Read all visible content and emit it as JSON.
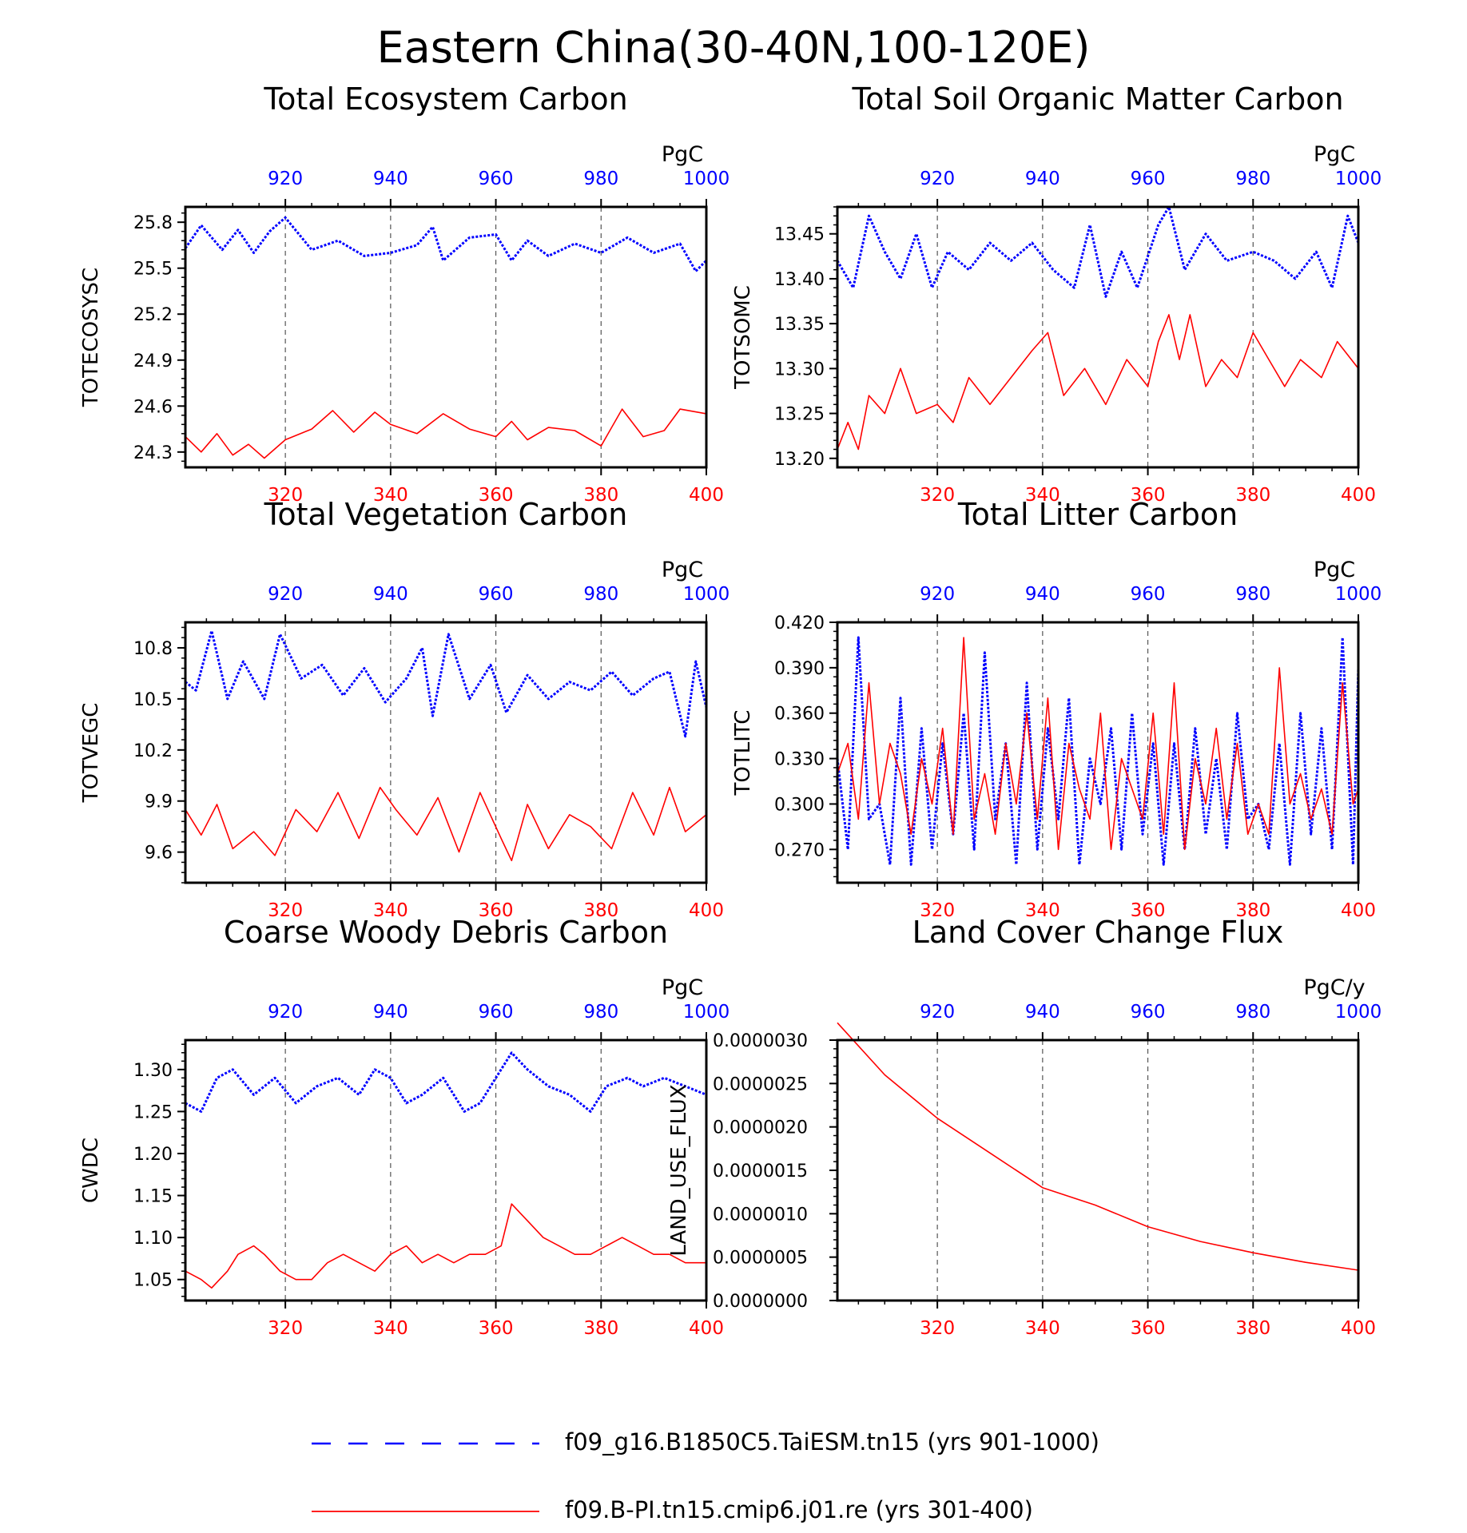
{
  "figure": {
    "title": "Eastern China(30-40N,100-120E)"
  },
  "colors": {
    "series_a": "#0000ff",
    "series_b": "#ff0000",
    "axis": "#000000"
  },
  "legend": [
    {
      "label": "f09_g16.B1850C5.TaiESM.tn15 (yrs 901-1000)",
      "style": "dashed-blue"
    },
    {
      "label": "f09.B-PI.tn15.cmip6.j01.re (yrs 301-400)",
      "style": "solid-red"
    }
  ],
  "chart_data": [
    {
      "type": "line",
      "title": "Total Ecosystem Carbon",
      "ylabel": "TOTECOSYSC",
      "units": "PgC",
      "ylim": [
        24.2,
        25.9
      ],
      "yticks": [
        "24.3",
        "24.6",
        "24.9",
        "25.2",
        "25.5",
        "25.8"
      ],
      "xlim_bottom": [
        301,
        400
      ],
      "xticks_bottom": [
        "320",
        "340",
        "360",
        "380",
        "400"
      ],
      "xlim_top": [
        901,
        1000
      ],
      "xticks_top": [
        "920",
        "940",
        "960",
        "980",
        "1000"
      ],
      "grid": "vertical-dashed",
      "series": [
        {
          "name": "f09_g16.B1850C5.TaiESM.tn15 (yrs 901-1000)",
          "axis": "top",
          "x": [
            901,
            904,
            908,
            911,
            914,
            917,
            920,
            925,
            930,
            935,
            940,
            945,
            948,
            950,
            955,
            960,
            963,
            966,
            970,
            975,
            980,
            985,
            990,
            995,
            998,
            1000
          ],
          "values": [
            25.63,
            25.78,
            25.62,
            25.75,
            25.6,
            25.74,
            25.83,
            25.62,
            25.68,
            25.58,
            25.6,
            25.65,
            25.77,
            25.55,
            25.7,
            25.72,
            25.55,
            25.68,
            25.58,
            25.66,
            25.6,
            25.7,
            25.6,
            25.66,
            25.48,
            25.55
          ]
        },
        {
          "name": "f09.B-PI.tn15.cmip6.j01.re (yrs 301-400)",
          "axis": "bottom",
          "x": [
            301,
            304,
            307,
            310,
            313,
            316,
            320,
            325,
            329,
            333,
            337,
            340,
            345,
            350,
            355,
            360,
            363,
            366,
            370,
            375,
            380,
            384,
            388,
            392,
            395,
            400
          ],
          "values": [
            24.4,
            24.3,
            24.42,
            24.28,
            24.35,
            24.26,
            24.38,
            24.45,
            24.57,
            24.43,
            24.56,
            24.48,
            24.42,
            24.55,
            24.45,
            24.4,
            24.5,
            24.38,
            24.46,
            24.44,
            24.34,
            24.58,
            24.4,
            24.44,
            24.58,
            24.55
          ]
        }
      ]
    },
    {
      "type": "line",
      "title": "Total Soil Organic Matter Carbon",
      "ylabel": "TOTSOMC",
      "units": "PgC",
      "ylim": [
        13.19,
        13.48
      ],
      "yticks": [
        "13.20",
        "13.25",
        "13.30",
        "13.35",
        "13.40",
        "13.45"
      ],
      "xlim_bottom": [
        301,
        400
      ],
      "xticks_bottom": [
        "320",
        "340",
        "360",
        "380",
        "400"
      ],
      "xlim_top": [
        901,
        1000
      ],
      "xticks_top": [
        "920",
        "940",
        "960",
        "980",
        "1000"
      ],
      "grid": "vertical-dashed",
      "series": [
        {
          "name": "f09_g16.B1850C5.TaiESM.tn15 (yrs 901-1000)",
          "axis": "top",
          "x": [
            901,
            904,
            907,
            910,
            913,
            916,
            919,
            922,
            926,
            930,
            934,
            938,
            942,
            946,
            949,
            952,
            955,
            958,
            962,
            964,
            967,
            971,
            975,
            980,
            984,
            988,
            992,
            995,
            998,
            1000
          ],
          "values": [
            13.42,
            13.39,
            13.47,
            13.43,
            13.4,
            13.45,
            13.39,
            13.43,
            13.41,
            13.44,
            13.42,
            13.44,
            13.41,
            13.39,
            13.46,
            13.38,
            13.43,
            13.39,
            13.46,
            13.48,
            13.41,
            13.45,
            13.42,
            13.43,
            13.42,
            13.4,
            13.43,
            13.39,
            13.47,
            13.44
          ]
        },
        {
          "name": "f09.B-PI.tn15.cmip6.j01.re (yrs 301-400)",
          "axis": "bottom",
          "x": [
            301,
            303,
            305,
            307,
            310,
            313,
            316,
            320,
            323,
            326,
            330,
            334,
            338,
            341,
            344,
            348,
            352,
            356,
            360,
            362,
            364,
            366,
            368,
            371,
            374,
            377,
            380,
            383,
            386,
            389,
            393,
            396,
            400
          ],
          "values": [
            13.21,
            13.24,
            13.21,
            13.27,
            13.25,
            13.3,
            13.25,
            13.26,
            13.24,
            13.29,
            13.26,
            13.29,
            13.32,
            13.34,
            13.27,
            13.3,
            13.26,
            13.31,
            13.28,
            13.33,
            13.36,
            13.31,
            13.36,
            13.28,
            13.31,
            13.29,
            13.34,
            13.31,
            13.28,
            13.31,
            13.29,
            13.33,
            13.3
          ]
        }
      ]
    },
    {
      "type": "line",
      "title": "Total Vegetation Carbon",
      "ylabel": "TOTVEGC",
      "units": "PgC",
      "ylim": [
        9.42,
        10.95
      ],
      "yticks": [
        "9.6",
        "9.9",
        "10.2",
        "10.5",
        "10.8"
      ],
      "xlim_bottom": [
        301,
        400
      ],
      "xticks_bottom": [
        "320",
        "340",
        "360",
        "380",
        "400"
      ],
      "xlim_top": [
        901,
        1000
      ],
      "xticks_top": [
        "920",
        "940",
        "960",
        "980",
        "1000"
      ],
      "grid": "vertical-dashed",
      "series": [
        {
          "name": "f09_g16.B1850C5.TaiESM.tn15 (yrs 901-1000)",
          "axis": "top",
          "x": [
            901,
            903,
            906,
            909,
            912,
            916,
            919,
            923,
            927,
            931,
            935,
            939,
            943,
            946,
            948,
            951,
            955,
            959,
            962,
            966,
            970,
            974,
            978,
            982,
            986,
            990,
            993,
            996,
            998,
            1000
          ],
          "values": [
            10.6,
            10.55,
            10.9,
            10.5,
            10.72,
            10.5,
            10.88,
            10.62,
            10.7,
            10.52,
            10.68,
            10.48,
            10.62,
            10.8,
            10.4,
            10.88,
            10.5,
            10.7,
            10.42,
            10.64,
            10.5,
            10.6,
            10.55,
            10.66,
            10.52,
            10.62,
            10.66,
            10.28,
            10.72,
            10.45
          ]
        },
        {
          "name": "f09.B-PI.tn15.cmip6.j01.re (yrs 301-400)",
          "axis": "bottom",
          "x": [
            301,
            304,
            307,
            310,
            314,
            318,
            322,
            326,
            330,
            334,
            338,
            341,
            345,
            349,
            353,
            357,
            361,
            363,
            366,
            370,
            374,
            378,
            382,
            386,
            390,
            393,
            396,
            400
          ],
          "values": [
            9.85,
            9.7,
            9.88,
            9.62,
            9.72,
            9.58,
            9.85,
            9.72,
            9.95,
            9.68,
            9.98,
            9.85,
            9.7,
            9.92,
            9.6,
            9.95,
            9.68,
            9.55,
            9.88,
            9.62,
            9.82,
            9.75,
            9.62,
            9.95,
            9.7,
            9.98,
            9.72,
            9.82
          ]
        }
      ]
    },
    {
      "type": "line",
      "title": "Total Litter Carbon",
      "ylabel": "TOTLITC",
      "units": "PgC",
      "ylim": [
        0.248,
        0.42
      ],
      "yticks": [
        "0.270",
        "0.300",
        "0.330",
        "0.360",
        "0.390",
        "0.420"
      ],
      "xlim_bottom": [
        301,
        400
      ],
      "xticks_bottom": [
        "320",
        "340",
        "360",
        "380",
        "400"
      ],
      "xlim_top": [
        901,
        1000
      ],
      "xticks_top": [
        "920",
        "940",
        "960",
        "980",
        "1000"
      ],
      "grid": "vertical-dashed",
      "series": [
        {
          "name": "f09_g16.B1850C5.TaiESM.tn15 (yrs 901-1000)",
          "axis": "top",
          "x": [
            901,
            903,
            905,
            907,
            909,
            911,
            913,
            915,
            917,
            919,
            921,
            923,
            925,
            927,
            929,
            931,
            933,
            935,
            937,
            939,
            941,
            943,
            945,
            947,
            949,
            951,
            953,
            955,
            957,
            959,
            961,
            963,
            965,
            967,
            969,
            971,
            973,
            975,
            977,
            979,
            981,
            983,
            985,
            987,
            989,
            991,
            993,
            995,
            997,
            999,
            1000
          ],
          "values": [
            0.33,
            0.27,
            0.41,
            0.29,
            0.3,
            0.26,
            0.37,
            0.26,
            0.35,
            0.27,
            0.34,
            0.28,
            0.36,
            0.27,
            0.4,
            0.29,
            0.34,
            0.26,
            0.38,
            0.27,
            0.35,
            0.29,
            0.37,
            0.26,
            0.33,
            0.3,
            0.35,
            0.27,
            0.36,
            0.28,
            0.34,
            0.26,
            0.34,
            0.27,
            0.35,
            0.28,
            0.33,
            0.27,
            0.36,
            0.29,
            0.3,
            0.27,
            0.34,
            0.26,
            0.36,
            0.28,
            0.35,
            0.27,
            0.41,
            0.26,
            0.39
          ]
        },
        {
          "name": "f09.B-PI.tn15.cmip6.j01.re (yrs 301-400)",
          "axis": "bottom",
          "x": [
            301,
            303,
            305,
            307,
            309,
            311,
            313,
            315,
            317,
            319,
            321,
            323,
            325,
            327,
            329,
            331,
            333,
            335,
            337,
            339,
            341,
            343,
            345,
            347,
            349,
            351,
            353,
            355,
            357,
            359,
            361,
            363,
            365,
            367,
            369,
            371,
            373,
            375,
            377,
            379,
            381,
            383,
            385,
            387,
            389,
            391,
            393,
            395,
            397,
            399,
            400
          ],
          "values": [
            0.32,
            0.34,
            0.29,
            0.38,
            0.3,
            0.34,
            0.32,
            0.28,
            0.33,
            0.3,
            0.35,
            0.28,
            0.41,
            0.29,
            0.32,
            0.28,
            0.34,
            0.3,
            0.36,
            0.29,
            0.37,
            0.27,
            0.34,
            0.31,
            0.29,
            0.36,
            0.27,
            0.33,
            0.31,
            0.29,
            0.36,
            0.28,
            0.38,
            0.27,
            0.33,
            0.3,
            0.35,
            0.29,
            0.34,
            0.28,
            0.3,
            0.28,
            0.39,
            0.3,
            0.32,
            0.29,
            0.31,
            0.28,
            0.38,
            0.3,
            0.31
          ]
        }
      ]
    },
    {
      "type": "line",
      "title": "Coarse Woody Debris Carbon",
      "ylabel": "CWDC",
      "units": "PgC",
      "ylim": [
        1.025,
        1.335
      ],
      "yticks": [
        "1.05",
        "1.10",
        "1.15",
        "1.20",
        "1.25",
        "1.30"
      ],
      "xlim_bottom": [
        301,
        400
      ],
      "xticks_bottom": [
        "320",
        "340",
        "360",
        "380",
        "400"
      ],
      "xlim_top": [
        901,
        1000
      ],
      "xticks_top": [
        "920",
        "940",
        "960",
        "980",
        "1000"
      ],
      "grid": "vertical-dashed",
      "series": [
        {
          "name": "f09_g16.B1850C5.TaiESM.tn15 (yrs 901-1000)",
          "axis": "top",
          "x": [
            901,
            904,
            907,
            910,
            914,
            918,
            922,
            926,
            930,
            934,
            937,
            940,
            943,
            946,
            950,
            954,
            957,
            960,
            963,
            966,
            970,
            974,
            978,
            981,
            985,
            988,
            992,
            996,
            1000
          ],
          "values": [
            1.26,
            1.25,
            1.29,
            1.3,
            1.27,
            1.29,
            1.26,
            1.28,
            1.29,
            1.27,
            1.3,
            1.29,
            1.26,
            1.27,
            1.29,
            1.25,
            1.26,
            1.29,
            1.32,
            1.3,
            1.28,
            1.27,
            1.25,
            1.28,
            1.29,
            1.28,
            1.29,
            1.28,
            1.27
          ]
        },
        {
          "name": "f09.B-PI.tn15.cmip6.j01.re (yrs 301-400)",
          "axis": "bottom",
          "x": [
            301,
            304,
            306,
            309,
            311,
            314,
            316,
            319,
            322,
            325,
            328,
            331,
            334,
            337,
            340,
            343,
            346,
            349,
            352,
            355,
            358,
            361,
            363,
            366,
            369,
            372,
            375,
            378,
            381,
            384,
            387,
            390,
            393,
            396,
            400
          ],
          "values": [
            1.06,
            1.05,
            1.04,
            1.06,
            1.08,
            1.09,
            1.08,
            1.06,
            1.05,
            1.05,
            1.07,
            1.08,
            1.07,
            1.06,
            1.08,
            1.09,
            1.07,
            1.08,
            1.07,
            1.08,
            1.08,
            1.09,
            1.14,
            1.12,
            1.1,
            1.09,
            1.08,
            1.08,
            1.09,
            1.1,
            1.09,
            1.08,
            1.08,
            1.07,
            1.07
          ]
        }
      ]
    },
    {
      "type": "line",
      "title": "Land Cover Change Flux",
      "ylabel": "LAND_USE_FLUX",
      "units": "PgC/y",
      "ylim": [
        0.0,
        3e-06
      ],
      "yticks": [
        "0.0000000",
        "0.0000005",
        "0.0000010",
        "0.0000015",
        "0.0000020",
        "0.0000025",
        "0.0000030"
      ],
      "xlim_bottom": [
        301,
        400
      ],
      "xticks_bottom": [
        "320",
        "340",
        "360",
        "380",
        "400"
      ],
      "xlim_top": [
        901,
        1000
      ],
      "xticks_top": [
        "920",
        "940",
        "960",
        "980",
        "1000"
      ],
      "grid": "vertical-dashed",
      "series": [
        {
          "name": "f09.B-PI.tn15.cmip6.j01.re (yrs 301-400)",
          "axis": "bottom",
          "x": [
            301,
            310,
            320,
            330,
            340,
            350,
            360,
            370,
            380,
            390,
            400
          ],
          "values": [
            3.2e-06,
            2.6e-06,
            2.1e-06,
            1.7e-06,
            1.3e-06,
            1.1e-06,
            8.5e-07,
            6.8e-07,
            5.5e-07,
            4.4e-07,
            3.5e-07
          ]
        }
      ]
    }
  ]
}
